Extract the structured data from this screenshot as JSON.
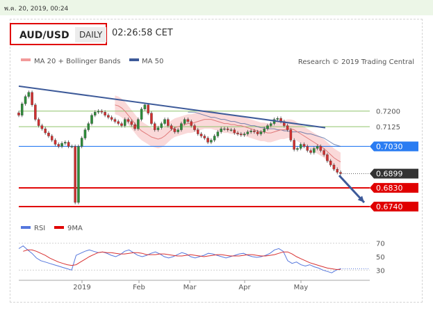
{
  "meta": {
    "datetime": "พ.ค. 20, 2019, 00:24"
  },
  "header": {
    "symbol": "AUD/USD",
    "timeframe": "DAILY",
    "clock": "02:26:58 CET"
  },
  "legend": {
    "ma20": "MA 20 + Bollinger Bands",
    "ma50": "MA 50",
    "credit": "Research © 2019 Trading Central"
  },
  "rsi_legend": {
    "rsi": "RSI",
    "ma9": "9MA"
  },
  "colors": {
    "price_up": "#2e8b3a",
    "price_down": "#d03030",
    "bands": "#f8c9c9",
    "ma20": "#e07a7a",
    "ma50": "#3d5a99",
    "resistance": "#8fc46a",
    "pivot": "#2a7cf2",
    "support": "#e00000",
    "last": "#333333",
    "trendline": "#3d5a99",
    "rsi": "#5577dd",
    "rsi_ma": "#d83030"
  },
  "chart_data": [
    {
      "type": "candlestick",
      "xlabel": "",
      "ylabel": "",
      "ylim": [
        0.672,
        0.74
      ],
      "x_ticks": [
        "2019",
        "Feb",
        "Mar",
        "Apr",
        "May"
      ],
      "levels": [
        {
          "label": "0.7200",
          "value": 0.72,
          "kind": "resistance"
        },
        {
          "label": "0.7125",
          "value": 0.7125,
          "kind": "resistance"
        },
        {
          "label": "0.7030",
          "value": 0.703,
          "kind": "pivot"
        },
        {
          "label": "0.6899",
          "value": 0.6899,
          "kind": "last"
        },
        {
          "label": "0.6830",
          "value": 0.683,
          "kind": "support"
        },
        {
          "label": "0.6740",
          "value": 0.674,
          "kind": "support"
        }
      ],
      "trendline": {
        "start": 0.732,
        "end": 0.712
      },
      "forecast_arrow": {
        "from": 0.689,
        "to": 0.676,
        "direction": "down"
      },
      "series": [
        {
          "name": "AUD/USD",
          "close": [
            0.718,
            0.7235,
            0.727,
            0.729,
            0.723,
            0.716,
            0.713,
            0.7115,
            0.7095,
            0.708,
            0.706,
            0.704,
            0.703,
            0.7045,
            0.705,
            0.703,
            0.703,
            0.676,
            0.703,
            0.707,
            0.711,
            0.714,
            0.718,
            0.7195,
            0.72,
            0.7195,
            0.718,
            0.717,
            0.716,
            0.715,
            0.714,
            0.713,
            0.716,
            0.715,
            0.7135,
            0.7115,
            0.716,
            0.721,
            0.723,
            0.719,
            0.714,
            0.711,
            0.712,
            0.714,
            0.716,
            0.713,
            0.7115,
            0.71,
            0.711,
            0.714,
            0.716,
            0.715,
            0.713,
            0.711,
            0.709,
            0.708,
            0.707,
            0.705,
            0.706,
            0.708,
            0.71,
            0.7115,
            0.7115,
            0.711,
            0.711,
            0.7095,
            0.709,
            0.7085,
            0.709,
            0.71,
            0.7105,
            0.71,
            0.709,
            0.71,
            0.7115,
            0.713,
            0.714,
            0.716,
            0.7165,
            0.715,
            0.713,
            0.711,
            0.706,
            0.7015,
            0.702,
            0.704,
            0.703,
            0.701,
            0.7,
            0.702,
            0.703,
            0.701,
            0.699,
            0.696,
            0.694,
            0.692,
            0.6905,
            0.6899
          ]
        },
        {
          "name": "MA 20",
          "values": [
            0.723,
            0.7225,
            0.7215,
            0.72,
            0.718,
            0.716,
            0.714,
            0.712,
            0.7105,
            0.7095,
            0.7085,
            0.7075,
            0.707,
            0.7065,
            0.707,
            0.708,
            0.7095,
            0.711,
            0.712,
            0.7125,
            0.713,
            0.7135,
            0.714,
            0.714,
            0.7145,
            0.715,
            0.7155,
            0.716,
            0.716,
            0.716,
            0.7155,
            0.715,
            0.7145,
            0.714,
            0.714,
            0.7135,
            0.7135,
            0.713,
            0.713,
            0.7125,
            0.712,
            0.7115,
            0.711,
            0.7105,
            0.71,
            0.71,
            0.7095,
            0.7095,
            0.71,
            0.7105,
            0.711,
            0.711,
            0.7115,
            0.7115,
            0.711,
            0.71,
            0.709,
            0.708,
            0.707,
            0.706,
            0.705,
            0.704,
            0.703,
            0.702,
            0.7005,
            0.699,
            0.6975,
            0.6965,
            0.6955
          ]
        },
        {
          "name": "MA 50",
          "values": [
            0.7195,
            0.7195,
            0.7195,
            0.719,
            0.7185,
            0.718,
            0.7175,
            0.717,
            0.717,
            0.7165,
            0.716,
            0.716,
            0.7155,
            0.715,
            0.715,
            0.7145,
            0.714,
            0.714,
            0.7135,
            0.713,
            0.713,
            0.7125,
            0.712,
            0.712,
            0.7115,
            0.7115,
            0.7115,
            0.711,
            0.711,
            0.7105,
            0.7105,
            0.71,
            0.71,
            0.71,
            0.71,
            0.7095,
            0.709,
            0.709,
            0.7085,
            0.708,
            0.7075,
            0.707,
            0.706,
            0.705,
            0.704,
            0.7035,
            0.703
          ]
        }
      ]
    },
    {
      "type": "line",
      "ylim": [
        20,
        80
      ],
      "y_ticks": [
        "70",
        "50",
        "30"
      ],
      "series": [
        {
          "name": "RSI",
          "values": [
            62,
            66,
            60,
            55,
            48,
            44,
            42,
            40,
            38,
            36,
            34,
            32,
            30,
            52,
            55,
            58,
            60,
            58,
            56,
            57,
            55,
            52,
            50,
            53,
            58,
            60,
            56,
            52,
            50,
            52,
            55,
            57,
            54,
            50,
            48,
            50,
            53,
            56,
            54,
            50,
            48,
            50,
            52,
            55,
            54,
            52,
            50,
            48,
            50,
            52,
            54,
            55,
            52,
            50,
            49,
            50,
            52,
            55,
            60,
            62,
            58,
            44,
            40,
            42,
            38,
            36,
            38,
            35,
            33,
            30,
            28,
            26,
            30,
            32
          ]
        },
        {
          "name": "9MA",
          "values": [
            58,
            60,
            60,
            58,
            55,
            52,
            48,
            45,
            42,
            40,
            38,
            37,
            38,
            42,
            46,
            50,
            53,
            56,
            57,
            56,
            56,
            55,
            54,
            54,
            55,
            56,
            56,
            55,
            53,
            53,
            53,
            54,
            54,
            53,
            52,
            51,
            51,
            52,
            53,
            52,
            51,
            50,
            51,
            52,
            53,
            53,
            52,
            51,
            51,
            51,
            52,
            53,
            53,
            52,
            51,
            51,
            52,
            53,
            55,
            57,
            57,
            54,
            50,
            47,
            44,
            41,
            39,
            37,
            35,
            33,
            32,
            31,
            31
          ]
        }
      ]
    }
  ]
}
